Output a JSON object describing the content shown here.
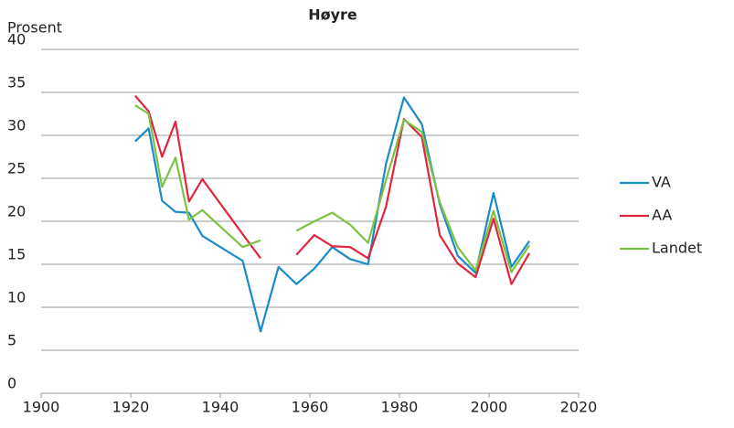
{
  "chart_data": {
    "type": "line",
    "title": "Høyre",
    "y_label": "Prosent",
    "x": [
      1921,
      1924,
      1927,
      1930,
      1933,
      1936,
      1945,
      1949,
      1953,
      1957,
      1961,
      1965,
      1969,
      1973,
      1977,
      1981,
      1985,
      1989,
      1993,
      1997,
      2001,
      2005,
      2009
    ],
    "series": [
      {
        "name": "VA",
        "color": "#1a8ac8",
        "values": [
          29.3,
          30.8,
          22.4,
          21.1,
          21.0,
          18.3,
          15.4,
          7.2,
          14.7,
          12.7,
          14.5,
          17.0,
          15.6,
          15.0,
          26.7,
          34.4,
          31.3,
          22.0,
          16.0,
          14.0,
          23.3,
          14.7,
          17.7
        ]
      },
      {
        "name": "AA",
        "color": "#e0263f",
        "values": [
          34.6,
          32.8,
          27.5,
          31.6,
          22.3,
          24.9,
          18.5,
          15.7,
          null,
          16.1,
          18.4,
          17.1,
          17.0,
          15.7,
          21.7,
          31.9,
          29.8,
          18.4,
          15.1,
          13.5,
          20.3,
          12.7,
          16.3
        ]
      },
      {
        "name": "Landet",
        "color": "#7cc242",
        "values": [
          33.5,
          32.5,
          24.0,
          27.4,
          20.2,
          21.3,
          17.0,
          17.8,
          null,
          18.9,
          20.0,
          21.0,
          19.6,
          17.5,
          24.8,
          31.8,
          30.4,
          22.2,
          17.0,
          14.3,
          21.2,
          14.1,
          17.2
        ]
      }
    ],
    "xlim": [
      1900,
      2020
    ],
    "xticks": [
      1900,
      1920,
      1940,
      1960,
      1980,
      2000,
      2020
    ],
    "ylim": [
      0,
      40
    ],
    "yticks": [
      0,
      5,
      10,
      15,
      20,
      25,
      30,
      35,
      40
    ],
    "grid": true,
    "legend": "right"
  }
}
